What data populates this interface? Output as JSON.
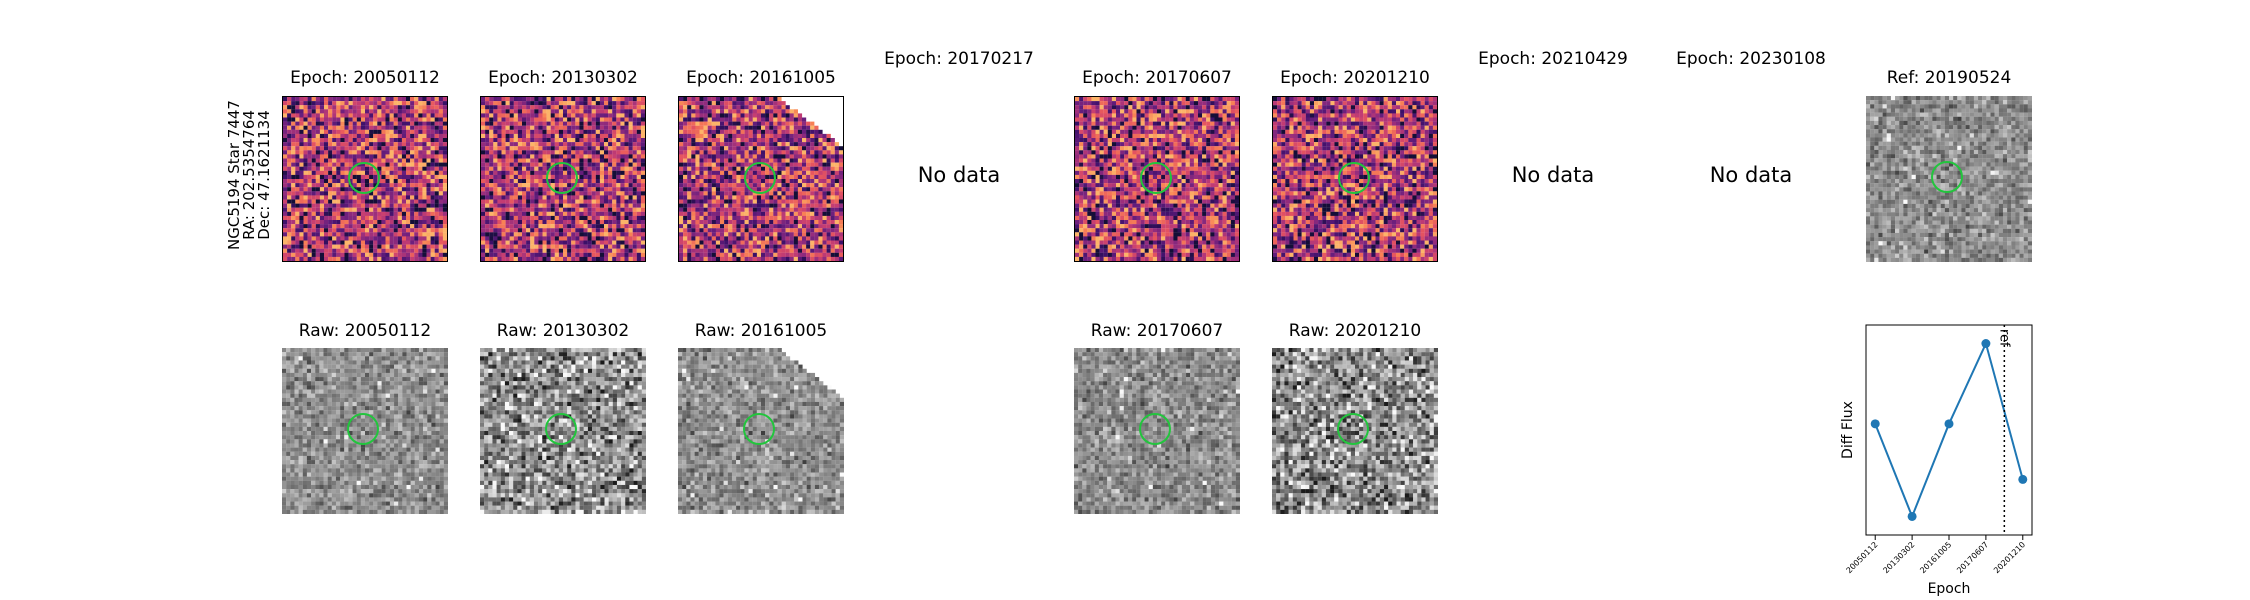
{
  "star": {
    "lines": [
      "NGC5194 Star 7447",
      "RA: 202.5354764",
      "Dec: 47.1621134"
    ]
  },
  "diff_row": [
    {
      "title": "Epoch: 20050112",
      "kind": "diff"
    },
    {
      "title": "Epoch: 20130302",
      "kind": "diff"
    },
    {
      "title": "Epoch: 20161005",
      "kind": "diff",
      "partial": true
    },
    {
      "title": "Epoch: 20170217",
      "kind": "nodata",
      "text": "No data"
    },
    {
      "title": "Epoch: 20170607",
      "kind": "diff"
    },
    {
      "title": "Epoch: 20201210",
      "kind": "diff"
    },
    {
      "title": "Epoch: 20210429",
      "kind": "nodata",
      "text": "No data"
    },
    {
      "title": "Epoch: 20230108",
      "kind": "nodata",
      "text": "No data"
    },
    {
      "title": "Ref: 20190524",
      "kind": "ref"
    }
  ],
  "raw_row": [
    {
      "title": "Raw: 20050112"
    },
    {
      "title": "Raw: 20130302"
    },
    {
      "title": "Raw: 20161005",
      "partial": true
    },
    {
      "title": "Raw: 20170607"
    },
    {
      "title": "Raw: 20201210"
    }
  ],
  "colors": {
    "aperture": "#22c53d",
    "line": "#1f77b4"
  },
  "chart_data": {
    "type": "line",
    "x": [
      "20050112",
      "20130302",
      "20161005",
      "20170607",
      "20201210"
    ],
    "series": [
      {
        "values": [
          0.2,
          -1.3,
          0.2,
          1.5,
          -0.7
        ]
      }
    ],
    "ylabel": "Diff Flux",
    "xlabel": "Epoch",
    "ref_label": "ref",
    "ref_position_between": [
      "20170607",
      "20201210"
    ],
    "yticks": "none"
  }
}
